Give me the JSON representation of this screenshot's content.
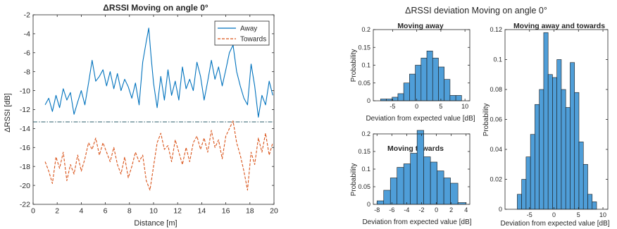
{
  "figure": {
    "left_title": "ΔRSSI Moving on angle 0°",
    "right_title": "ΔRSSI deviation Moving on angle 0°"
  },
  "colors": {
    "away": "#0072BD",
    "towards": "#D95319",
    "hist_fill": "#4F9ED8",
    "hist_edge": "#1a1a1a",
    "reference_line": "#2b5d6b",
    "axis": "#262626"
  },
  "chart_data": [
    {
      "id": "rssi_vs_distance",
      "type": "line",
      "title": "ΔRSSI Moving on angle 0°",
      "xlabel": "Distance [m]",
      "ylabel": "ΔRSSI [dB]",
      "xlim": [
        0,
        20
      ],
      "ylim": [
        -22,
        -2
      ],
      "xticks": [
        0,
        2,
        4,
        6,
        8,
        10,
        12,
        14,
        16,
        18,
        20
      ],
      "yticks": [
        -22,
        -20,
        -18,
        -16,
        -14,
        -12,
        -10,
        -8,
        -6,
        -4,
        -2
      ],
      "grid": false,
      "legend": "top-right",
      "reference_line": {
        "y": -13.3,
        "style": "dash-dot"
      },
      "series": [
        {
          "name": "Away",
          "style": "solid",
          "x": [
            1.0,
            1.3,
            1.6,
            1.9,
            2.2,
            2.5,
            2.8,
            3.1,
            3.4,
            3.7,
            4.0,
            4.3,
            4.6,
            4.9,
            5.2,
            5.5,
            5.8,
            6.1,
            6.4,
            6.7,
            7.0,
            7.3,
            7.6,
            7.9,
            8.2,
            8.5,
            8.8,
            9.1,
            9.4,
            9.6,
            9.8,
            10.0,
            10.3,
            10.6,
            10.9,
            11.2,
            11.5,
            11.8,
            12.1,
            12.4,
            12.7,
            13.0,
            13.3,
            13.6,
            13.9,
            14.2,
            14.5,
            14.8,
            15.1,
            15.4,
            15.7,
            16.0,
            16.3,
            16.6,
            16.9,
            17.2,
            17.5,
            17.8,
            18.1,
            18.4,
            18.7,
            19.0,
            19.3,
            19.6,
            19.9
          ],
          "y": [
            -11.5,
            -10.8,
            -12.2,
            -10.5,
            -11.8,
            -9.8,
            -11.0,
            -10.2,
            -12.5,
            -11.2,
            -10.0,
            -11.5,
            -9.2,
            -6.8,
            -9.0,
            -8.5,
            -7.8,
            -9.5,
            -8.0,
            -9.8,
            -8.2,
            -10.0,
            -8.8,
            -9.6,
            -10.8,
            -9.2,
            -11.5,
            -7.0,
            -4.8,
            -3.4,
            -6.5,
            -9.2,
            -11.8,
            -8.5,
            -11.0,
            -7.8,
            -10.5,
            -9.0,
            -11.0,
            -7.5,
            -9.8,
            -8.8,
            -10.0,
            -7.0,
            -8.5,
            -11.0,
            -9.0,
            -6.8,
            -8.8,
            -7.5,
            -9.5,
            -7.8,
            -6.0,
            -5.2,
            -8.0,
            -9.5,
            -10.8,
            -11.5,
            -7.2,
            -9.5,
            -12.8,
            -10.5,
            -11.5,
            -9.0,
            -10.5
          ]
        },
        {
          "name": "Towards",
          "style": "dashed",
          "x": [
            1.0,
            1.3,
            1.6,
            1.9,
            2.2,
            2.5,
            2.8,
            3.1,
            3.4,
            3.7,
            4.0,
            4.3,
            4.6,
            4.9,
            5.2,
            5.5,
            5.8,
            6.1,
            6.4,
            6.7,
            7.0,
            7.3,
            7.6,
            7.9,
            8.2,
            8.5,
            8.8,
            9.1,
            9.4,
            9.7,
            10.0,
            10.3,
            10.6,
            10.9,
            11.2,
            11.5,
            11.8,
            12.1,
            12.4,
            12.7,
            13.0,
            13.3,
            13.6,
            13.9,
            14.2,
            14.5,
            14.8,
            15.1,
            15.4,
            15.7,
            16.0,
            16.3,
            16.6,
            16.9,
            17.2,
            17.5,
            17.8,
            18.1,
            18.4,
            18.7,
            19.0,
            19.3,
            19.6,
            19.9
          ],
          "y": [
            -17.5,
            -18.5,
            -19.8,
            -17.0,
            -18.2,
            -16.5,
            -19.5,
            -17.8,
            -18.8,
            -16.8,
            -18.5,
            -17.2,
            -15.5,
            -16.2,
            -15.0,
            -16.8,
            -15.5,
            -16.5,
            -17.5,
            -16.0,
            -17.8,
            -18.8,
            -17.0,
            -19.2,
            -18.0,
            -16.5,
            -17.5,
            -16.8,
            -19.5,
            -20.5,
            -18.0,
            -15.5,
            -14.5,
            -16.2,
            -15.8,
            -17.5,
            -15.2,
            -16.5,
            -17.8,
            -16.0,
            -17.5,
            -15.5,
            -14.8,
            -16.2,
            -15.0,
            -16.5,
            -14.2,
            -16.0,
            -15.2,
            -17.2,
            -14.8,
            -14.0,
            -13.2,
            -15.5,
            -16.8,
            -18.5,
            -20.5,
            -16.5,
            -17.8,
            -15.0,
            -16.5,
            -14.5,
            -16.8,
            -15.5
          ]
        }
      ]
    },
    {
      "id": "hist_away",
      "type": "bar",
      "title": "Moving away",
      "xlabel": "Deviation from expected value [dB]",
      "ylabel": "Probability",
      "xlim": [
        -9,
        11
      ],
      "ylim": [
        0,
        0.2
      ],
      "xticks": [
        -5,
        0,
        5,
        10
      ],
      "yticks": [
        0,
        0.05,
        0.1,
        0.15,
        0.2
      ],
      "bin_edges": [
        -7.5,
        -6.3,
        -5.1,
        -3.9,
        -2.7,
        -1.5,
        -0.3,
        0.9,
        2.1,
        3.3,
        4.5,
        5.7,
        6.9,
        8.1,
        9.3
      ],
      "values": [
        0.005,
        0.005,
        0.01,
        0.02,
        0.05,
        0.075,
        0.1,
        0.12,
        0.14,
        0.12,
        0.095,
        0.06,
        0.015,
        0.015
      ]
    },
    {
      "id": "hist_towards",
      "type": "bar",
      "title": "Moving towards",
      "xlabel": "Deviation from expected value [dB]",
      "ylabel": "Probability",
      "xlim": [
        -8.5,
        4.5
      ],
      "ylim": [
        0,
        0.2
      ],
      "xticks": [
        -8,
        -6,
        -4,
        -2,
        0,
        2,
        4
      ],
      "yticks": [
        0,
        0.05,
        0.1,
        0.15,
        0.2
      ],
      "bin_edges": [
        -8.0,
        -7.1,
        -6.2,
        -5.3,
        -4.4,
        -3.5,
        -2.6,
        -1.7,
        -0.8,
        0.1,
        1.0,
        1.9,
        2.9,
        4.0
      ],
      "values": [
        0.01,
        0.04,
        0.075,
        0.105,
        0.115,
        0.145,
        0.21,
        0.135,
        0.12,
        0.095,
        0.075,
        0.06,
        0.005
      ]
    },
    {
      "id": "hist_combined",
      "type": "bar",
      "title": "Moving away and towards",
      "xlabel": "Deviation from expected value [dB]",
      "ylabel": "Probability",
      "xlim": [
        -10,
        11
      ],
      "ylim": [
        0,
        0.12
      ],
      "xticks": [
        -5,
        0,
        5,
        10
      ],
      "yticks": [
        0,
        0.02,
        0.04,
        0.06,
        0.08,
        0.1,
        0.12
      ],
      "bin_edges": [
        -7.5,
        -6.6,
        -5.7,
        -4.8,
        -3.9,
        -3.0,
        -2.1,
        -1.2,
        -0.3,
        0.6,
        1.5,
        2.4,
        3.3,
        4.2,
        5.1,
        6.0,
        6.9,
        7.8,
        8.7
      ],
      "values": [
        0.01,
        0.02,
        0.035,
        0.05,
        0.07,
        0.08,
        0.118,
        0.09,
        0.088,
        0.1,
        0.08,
        0.068,
        0.098,
        0.078,
        0.045,
        0.03,
        0.01,
        0.005
      ]
    }
  ]
}
